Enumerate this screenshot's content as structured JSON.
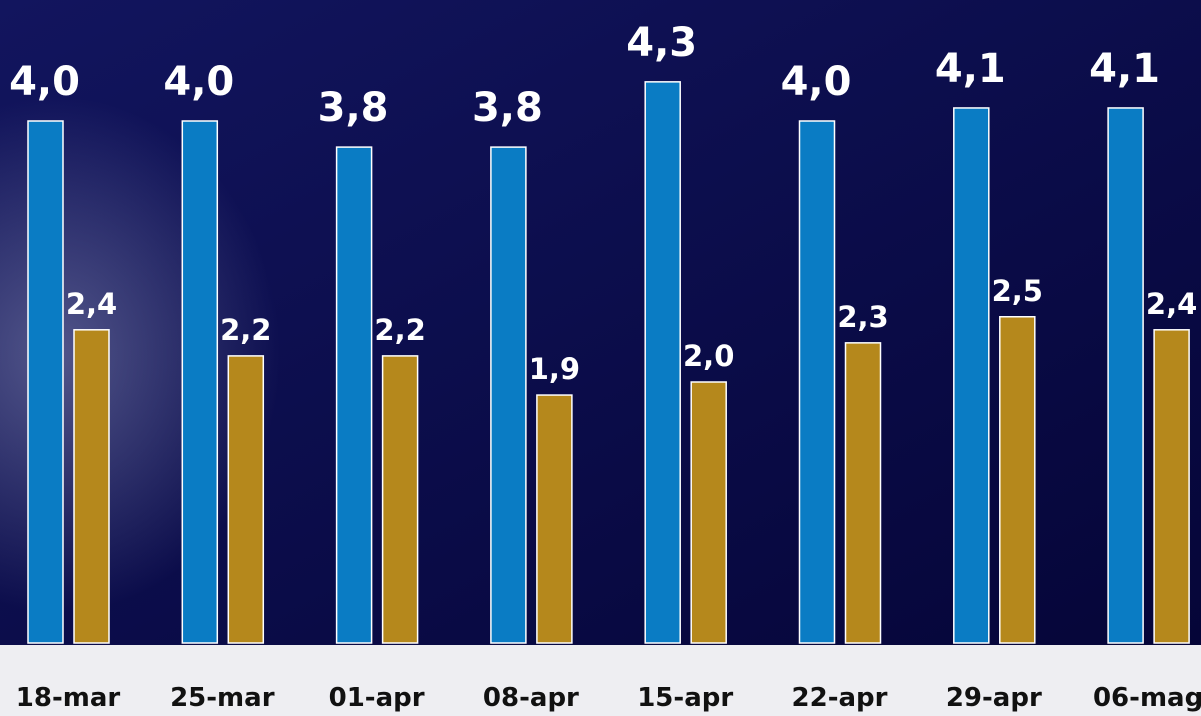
{
  "chart_data": {
    "type": "bar",
    "categories": [
      "18-mar",
      "25-mar",
      "01-apr",
      "08-apr",
      "15-apr",
      "22-apr",
      "29-apr",
      "06-mag"
    ],
    "series": [
      {
        "color": "#0a7cc4",
        "values": [
          4.0,
          4.0,
          3.8,
          3.8,
          4.3,
          4.0,
          4.1,
          4.1
        ],
        "value_labels": [
          "4,0",
          "4,0",
          "3,8",
          "3,8",
          "4,3",
          "4,0",
          "4,1",
          "4,1"
        ]
      },
      {
        "color": "#b5881c",
        "values": [
          2.4,
          2.2,
          2.2,
          1.9,
          2.0,
          2.3,
          2.5,
          2.4
        ],
        "value_labels": [
          "2,4",
          "2,2",
          "2,2",
          "1,9",
          "2,0",
          "2,3",
          "2,5",
          "2,4"
        ]
      }
    ]
  }
}
